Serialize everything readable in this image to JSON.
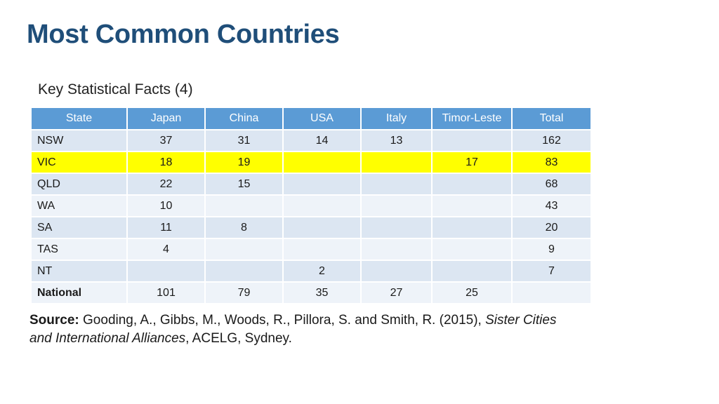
{
  "title": "Most Common Countries",
  "subtitle": "Key Statistical Facts (4)",
  "table": {
    "headers": [
      "State",
      "Japan",
      "China",
      "USA",
      "Italy",
      "Timor-Leste",
      "Total"
    ],
    "rows": [
      [
        "NSW",
        "37",
        "31",
        "14",
        "13",
        "",
        "162"
      ],
      [
        "VIC",
        "18",
        "19",
        "",
        "",
        "17",
        "83"
      ],
      [
        "QLD",
        "22",
        "15",
        "",
        "",
        "",
        "68"
      ],
      [
        "WA",
        "10",
        "",
        "",
        "",
        "",
        "43"
      ],
      [
        "SA",
        "11",
        "8",
        "",
        "",
        "",
        "20"
      ],
      [
        "TAS",
        "4",
        "",
        "",
        "",
        "",
        "9"
      ],
      [
        "NT",
        "",
        "",
        "2",
        "",
        "",
        "7"
      ],
      [
        "National",
        "101",
        "79",
        "35",
        "27",
        "25",
        ""
      ]
    ],
    "highlight_color": "#ffff00",
    "header_color": "#5b9bd5"
  },
  "source": {
    "label": "Source:",
    "text_before": " Gooding, A., Gibbs, M., Woods, R., Pillora, S. and Smith, R. (2015), ",
    "italic_title": "Sister Cities and International Alliances",
    "text_after": ", ACELG, Sydney."
  }
}
